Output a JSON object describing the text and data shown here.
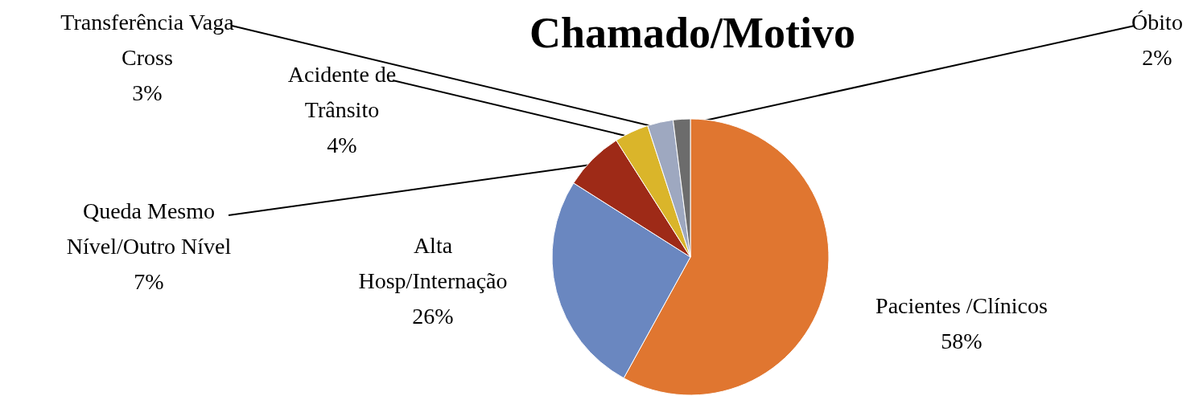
{
  "chart_data": {
    "type": "pie",
    "title": "Chamado/Motivo",
    "categories": [
      "Pacientes /Clínicos",
      "Alta Hosp/Internação",
      "Queda Mesmo Nível/Outro Nível",
      "Acidente de Trânsito",
      "Transferência Vaga Cross",
      "Óbito"
    ],
    "values": [
      58,
      26,
      7,
      4,
      3,
      2
    ],
    "value_labels": [
      "58%",
      "26%",
      "7%",
      "4%",
      "3%",
      "2%"
    ],
    "colors": [
      "#e07630",
      "#6a87c0",
      "#9e2a17",
      "#dab52a",
      "#9ea8c0",
      "#6c6c6c"
    ]
  }
}
